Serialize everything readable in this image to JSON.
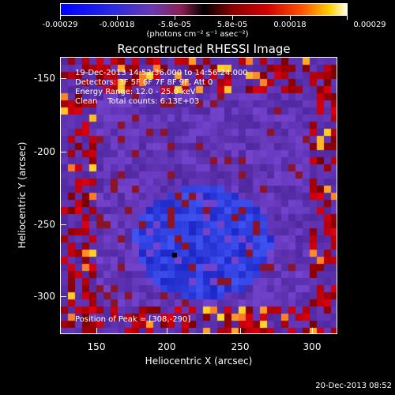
{
  "colorbar": {
    "ticks": [
      "-0.00029",
      "-0.00018",
      "-5.8e-05",
      "5.8e-05",
      "0.00018",
      "0.00029"
    ],
    "units": "(photons cm⁻² s⁻¹ asec⁻²)"
  },
  "title": "Reconstructed RHESSI Image",
  "info": {
    "time": "19-Dec-2013 14:52:36.000 to 14:56:24.000",
    "detectors": "Detectors: 3F 5F 6F 7F 8F 9F, Att 0",
    "energy": "Energy Range: 12.0 - 25.0 keV",
    "clean": "Clean    Total counts: 6.13E+03",
    "peak": "Position of Peak = [308,-290]"
  },
  "axes": {
    "xlabel": "Heliocentric X (arcsec)",
    "ylabel": "Heliocentric Y (arcsec)",
    "xticks": [
      "150",
      "200",
      "250",
      "300"
    ],
    "yticks": [
      "-150",
      "-200",
      "-250",
      "-300"
    ]
  },
  "footer": "20-Dec-2013 08:52",
  "colors": {
    "accent": "#ffffff",
    "background": "#000000"
  }
}
